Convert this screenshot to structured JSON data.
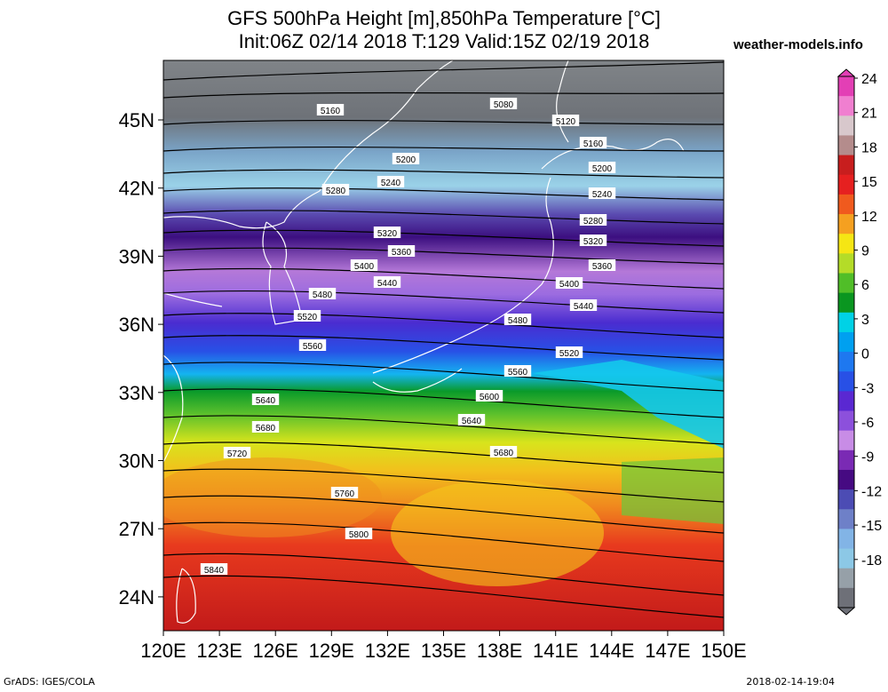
{
  "title_line1": "GFS 500hPa Height [m],850hPa Temperature [°C]",
  "title_line2": "Init:06Z 02/14 2018 T:129 Valid:15Z 02/19 2018",
  "brand": "weather-models.info",
  "footer_left": "GrADS: IGES/COLA",
  "footer_right": "2018-02-14-19:04",
  "lon_labels": [
    "120E",
    "123E",
    "126E",
    "129E",
    "132E",
    "135E",
    "138E",
    "141E",
    "144E",
    "147E",
    "150E"
  ],
  "lat_labels": [
    "45N",
    "42N",
    "39N",
    "36N",
    "33N",
    "30N",
    "27N",
    "24N"
  ],
  "colorbar": {
    "labels": [
      "24",
      "21",
      "18",
      "15",
      "12",
      "9",
      "6",
      "3",
      "0",
      "-3",
      "-6",
      "-9",
      "-12",
      "-15",
      "-18"
    ],
    "colors": [
      "#e33fb5",
      "#f07fd0",
      "#d8c8cc",
      "#b48c8c",
      "#c81e1e",
      "#e62020",
      "#f05a1e",
      "#f5a020",
      "#f5e614",
      "#b4dc28",
      "#50be28",
      "#0a9620",
      "#00d2e6",
      "#00a0f0",
      "#1e78f0",
      "#2850e6",
      "#5a28d2",
      "#8c50dc",
      "#c88ce6",
      "#7a2ab4",
      "#460a82",
      "#4c4cb4",
      "#6e80c8",
      "#82b4e6",
      "#8cc8e6",
      "#96a0a8",
      "#6e7078"
    ]
  },
  "contour_labels": [
    "5080",
    "5120",
    "5160",
    "5160",
    "5200",
    "5200",
    "5240",
    "5240",
    "5280",
    "5280",
    "5320",
    "5320",
    "5360",
    "5360",
    "5400",
    "5400",
    "5440",
    "5440",
    "5480",
    "5480",
    "5520",
    "5520",
    "5560",
    "5560",
    "5600",
    "5640",
    "5640",
    "5680",
    "5680",
    "5720",
    "5760",
    "5800",
    "5840"
  ],
  "icons": {
    "colorbar_top": "triangle-up-icon",
    "colorbar_bottom": "triangle-down-icon"
  }
}
